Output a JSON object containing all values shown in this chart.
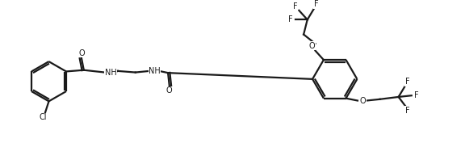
{
  "bg": "#ffffff",
  "lc": "#1a1a1a",
  "lw": 1.6,
  "fs": 7.0,
  "xlim": [
    0,
    100
  ],
  "ylim": [
    0,
    34
  ],
  "figw": 5.76,
  "figh": 1.98,
  "dpi": 100
}
